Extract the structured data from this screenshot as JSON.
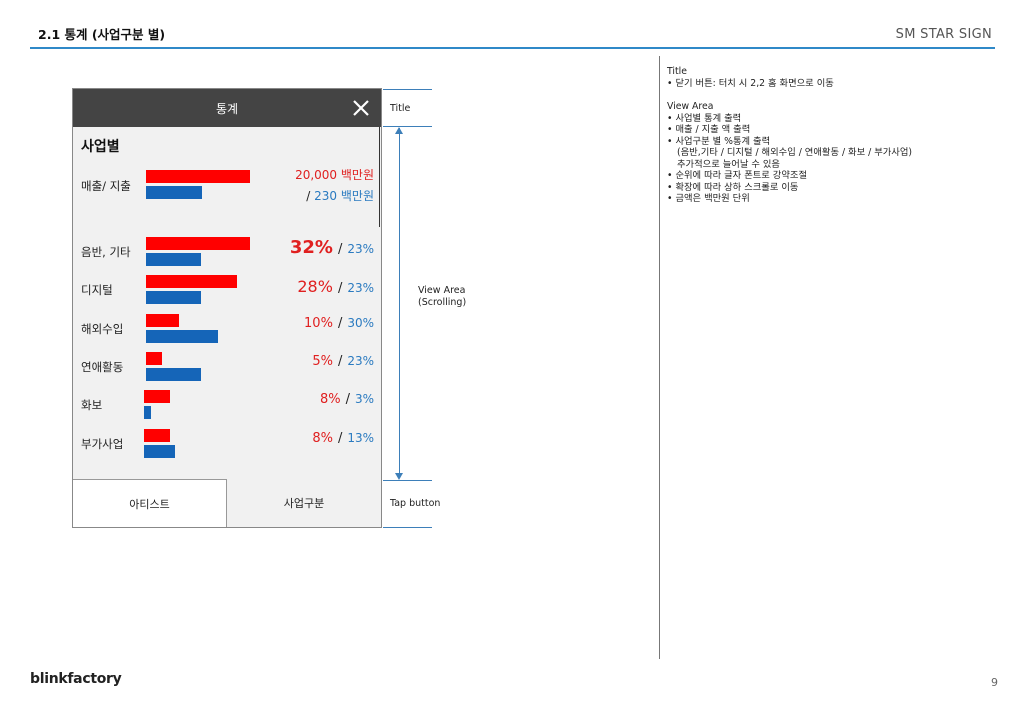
{
  "doc": {
    "title": "2.1 통계 (사업구분 별)",
    "brand_top": "SM STAR SIGN",
    "footer_brand": "blinkfactory",
    "page_number": "9"
  },
  "phone": {
    "header_title": "통계",
    "section_title": "사업별",
    "summary": {
      "label": "매출/ 지출",
      "revenue_text": "20,000 백만원",
      "expense_sep": "/",
      "expense_text": "230 백만원",
      "revenue_share": 1.0,
      "expense_share": 0.54
    },
    "rows": [
      {
        "label": "음반, 기타",
        "pct_a": "32%",
        "sep": "/",
        "pct_b": "23%",
        "a": 32,
        "b": 23
      },
      {
        "label": "디지털",
        "pct_a": "28%",
        "sep": "/",
        "pct_b": "23%",
        "a": 28,
        "b": 23
      },
      {
        "label": "해외수입",
        "pct_a": "10%",
        "sep": "/",
        "pct_b": "30%",
        "a": 10,
        "b": 30
      },
      {
        "label": "연애활동",
        "pct_a": "5%",
        "sep": "/",
        "pct_b": "23%",
        "a": 5,
        "b": 23
      },
      {
        "label": "화보",
        "pct_a": "8%",
        "sep": "/",
        "pct_b": "3%",
        "a": 8,
        "b": 3
      },
      {
        "label": "부가사업",
        "pct_a": "8%",
        "sep": "/",
        "pct_b": "13%",
        "a": 8,
        "b": 13
      }
    ],
    "tabs": [
      {
        "label": "아티스트"
      },
      {
        "label": "사업구분"
      }
    ],
    "colors": {
      "bar_a": "#ff0000",
      "bar_b": "#1565b8",
      "header": "#444444"
    }
  },
  "annotations": {
    "title_label": "Title",
    "view_label_1": "View Area",
    "view_label_2": "(Scrolling)",
    "tab_label": "Tap button"
  },
  "notes": {
    "group1_title": "Title",
    "group1_items": [
      "닫기 버튼: 터치 시 2,2 홈 화면으로 이동"
    ],
    "group2_title": "View Area",
    "group2_items": [
      "사업별 통계 출력",
      "매출 / 지출 액 출력",
      "사업구분 별 %통계 출력",
      "순위에 따라 글자 폰트로 강약조절",
      "확장에 따라 상하 스크롤로 이동",
      "금액은 백만원 단위"
    ],
    "group2_sub_lines": [
      "(음반,기타 / 디지털 / 해외수입 / 연애활동 / 화보 / 부가사업)",
      "추가적으로 늘어날 수 있음"
    ]
  }
}
